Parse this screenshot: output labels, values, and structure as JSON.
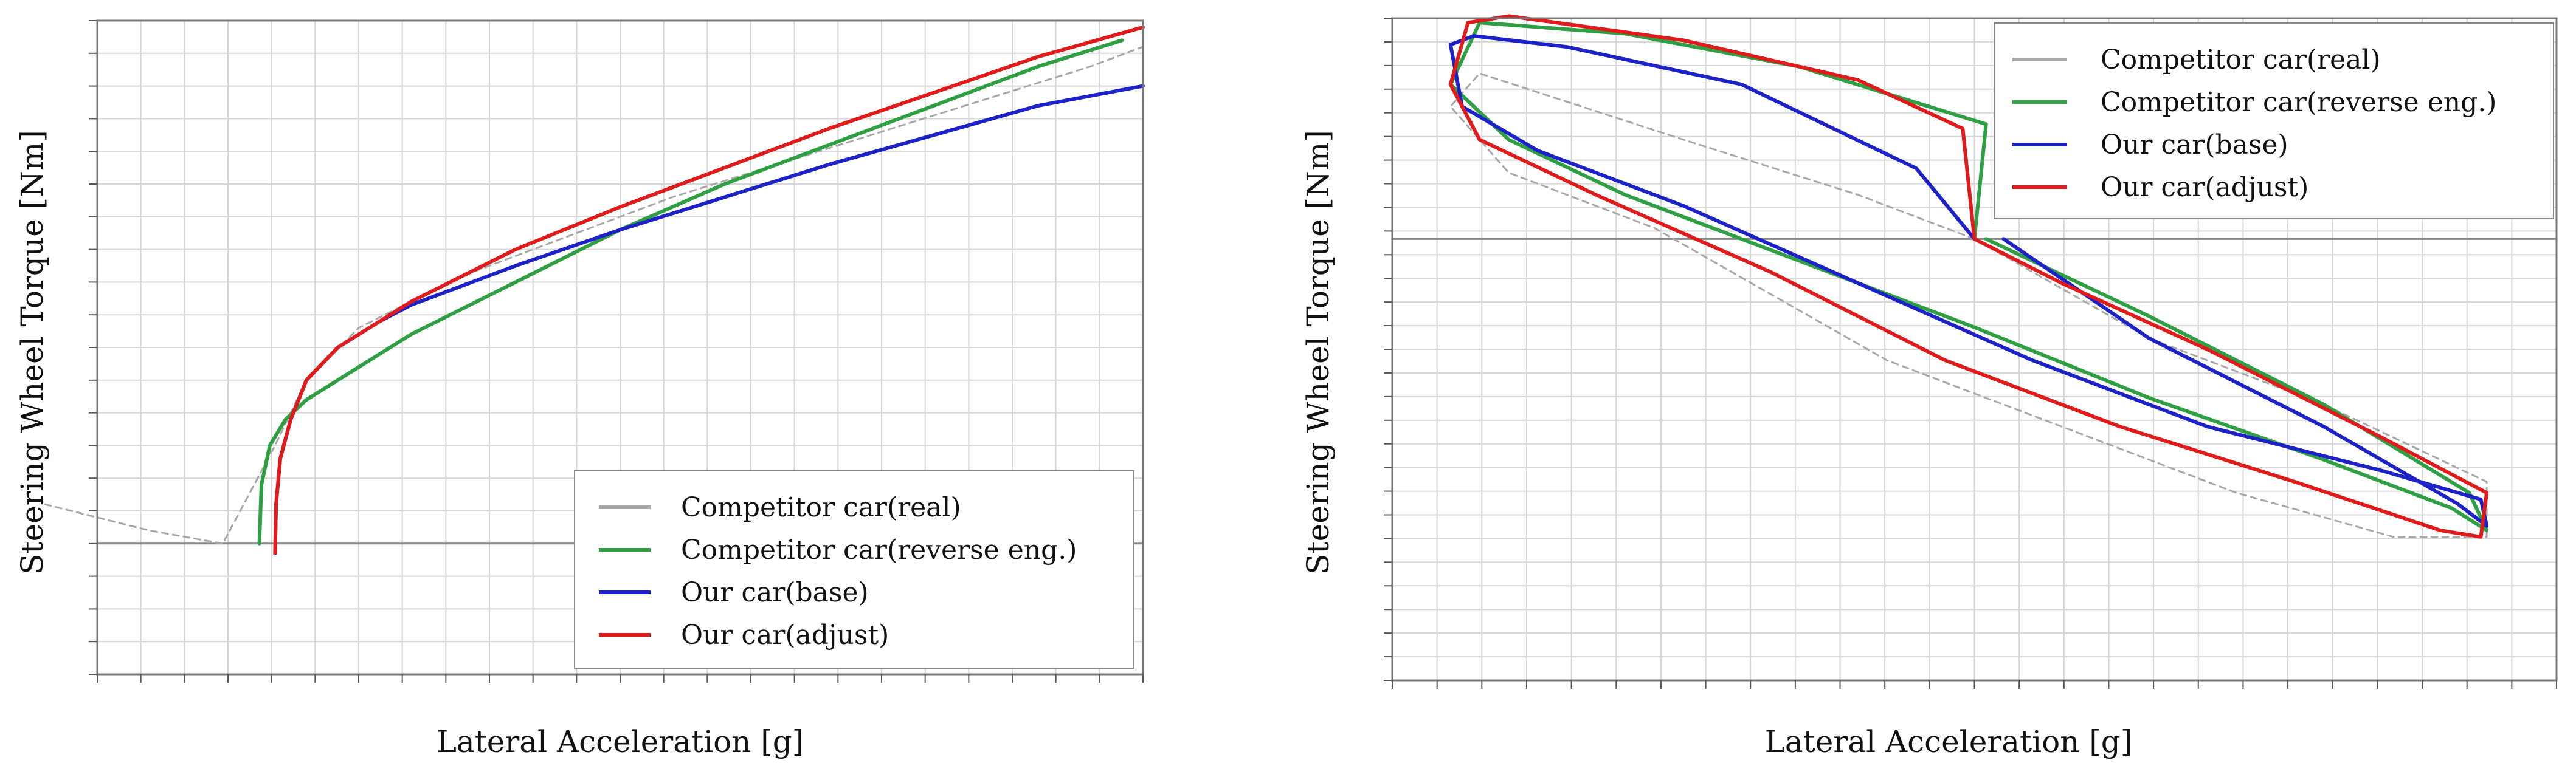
{
  "colors": {
    "competitor_real": "#a8a8a8",
    "competitor_reverse": "#2ea043",
    "our_base": "#1c22c8",
    "our_adjust": "#e01b1b",
    "grid": "#d6d6d6",
    "zero_line": "#888888",
    "frame": "#777777"
  },
  "chart_data": [
    {
      "type": "line",
      "xlabel": "Lateral Acceleration [g]",
      "ylabel": "Steering Wheel Torque [Nm]",
      "xlim": [
        0,
        1
      ],
      "ylim": [
        -2,
        8
      ],
      "grid": true,
      "legend": "bottom-right",
      "series": [
        {
          "name": "Competitor car(real)",
          "style": "dashed-noisy",
          "x": [
            -0.05,
            0.05,
            0.12,
            0.17,
            0.2,
            0.25,
            0.35,
            0.45,
            0.55,
            0.65,
            0.75,
            0.85,
            0.95,
            1.0
          ],
          "y": [
            0.6,
            0.2,
            0.0,
            1.5,
            2.5,
            3.3,
            4.1,
            4.7,
            5.3,
            5.8,
            6.3,
            6.8,
            7.3,
            7.6
          ]
        },
        {
          "name": "Competitor car(reverse eng.)",
          "x": [
            0.155,
            0.157,
            0.165,
            0.18,
            0.2,
            0.25,
            0.3,
            0.4,
            0.5,
            0.6,
            0.7,
            0.8,
            0.9,
            0.98
          ],
          "y": [
            0.0,
            0.9,
            1.5,
            1.9,
            2.2,
            2.7,
            3.2,
            4.0,
            4.8,
            5.5,
            6.1,
            6.7,
            7.3,
            7.7
          ]
        },
        {
          "name": "Our car(base)",
          "x": [
            0.17,
            0.171,
            0.175,
            0.185,
            0.2,
            0.23,
            0.27,
            0.3,
            0.4,
            0.5,
            0.6,
            0.7,
            0.8,
            0.9,
            1.0
          ],
          "y": [
            -0.15,
            0.6,
            1.3,
            1.9,
            2.5,
            3.0,
            3.4,
            3.65,
            4.25,
            4.8,
            5.3,
            5.8,
            6.25,
            6.7,
            7.0
          ]
        },
        {
          "name": "Our car(adjust)",
          "x": [
            0.17,
            0.171,
            0.175,
            0.185,
            0.2,
            0.23,
            0.27,
            0.3,
            0.4,
            0.5,
            0.6,
            0.7,
            0.8,
            0.9,
            1.0
          ],
          "y": [
            -0.15,
            0.6,
            1.3,
            1.9,
            2.5,
            3.0,
            3.4,
            3.7,
            4.5,
            5.15,
            5.75,
            6.35,
            6.9,
            7.45,
            7.9
          ]
        }
      ]
    },
    {
      "type": "line",
      "xlabel": "Lateral Acceleration [g]",
      "ylabel": "Steering Wheel Torque [Nm]",
      "xlim": [
        -1,
        1
      ],
      "ylim": [
        -2,
        1
      ],
      "grid": true,
      "legend": "top-right",
      "series": [
        {
          "name": "Competitor car(real)",
          "style": "dashed-noisy",
          "x": [
            0.0,
            -0.2,
            -0.5,
            -0.85,
            -0.9,
            -0.8,
            -0.55,
            -0.35,
            -0.15,
            0.15,
            0.45,
            0.72,
            0.88,
            0.88,
            0.6,
            0.3,
            0.1,
            0.0
          ],
          "y": [
            0.0,
            0.2,
            0.45,
            0.75,
            0.6,
            0.3,
            0.05,
            -0.25,
            -0.55,
            -0.85,
            -1.15,
            -1.35,
            -1.35,
            -1.1,
            -0.75,
            -0.45,
            -0.15,
            0.0
          ]
        },
        {
          "name": "Competitor car(reverse eng.)",
          "x": [
            0.0,
            0.02,
            -0.3,
            -0.6,
            -0.85,
            -0.9,
            -0.8,
            -0.6,
            -0.3,
            0.0,
            0.3,
            0.6,
            0.82,
            0.88,
            0.85,
            0.6,
            0.3,
            0.02
          ],
          "y": [
            0.0,
            0.52,
            0.78,
            0.93,
            0.98,
            0.7,
            0.45,
            0.2,
            -0.1,
            -0.4,
            -0.72,
            -1.0,
            -1.22,
            -1.32,
            -1.15,
            -0.75,
            -0.35,
            0.0
          ]
        },
        {
          "name": "Our car(base)",
          "x": [
            0.0,
            -0.1,
            -0.4,
            -0.7,
            -0.86,
            -0.9,
            -0.88,
            -0.75,
            -0.5,
            -0.2,
            0.1,
            0.4,
            0.7,
            0.87,
            0.88,
            0.83,
            0.6,
            0.3,
            0.05
          ],
          "y": [
            0.0,
            0.32,
            0.7,
            0.87,
            0.92,
            0.88,
            0.6,
            0.4,
            0.15,
            -0.2,
            -0.55,
            -0.85,
            -1.05,
            -1.18,
            -1.3,
            -1.2,
            -0.85,
            -0.45,
            0.0
          ]
        },
        {
          "name": "Our car(adjust)",
          "x": [
            0.0,
            -0.02,
            -0.2,
            -0.5,
            -0.8,
            -0.87,
            -0.9,
            -0.85,
            -0.65,
            -0.35,
            -0.05,
            0.25,
            0.55,
            0.8,
            0.87,
            0.88,
            0.7,
            0.4,
            0.15,
            0.0
          ],
          "y": [
            0.0,
            0.5,
            0.72,
            0.9,
            1.01,
            0.98,
            0.7,
            0.45,
            0.2,
            -0.15,
            -0.55,
            -0.85,
            -1.1,
            -1.32,
            -1.35,
            -1.15,
            -0.9,
            -0.5,
            -0.2,
            0.0
          ]
        }
      ]
    }
  ]
}
